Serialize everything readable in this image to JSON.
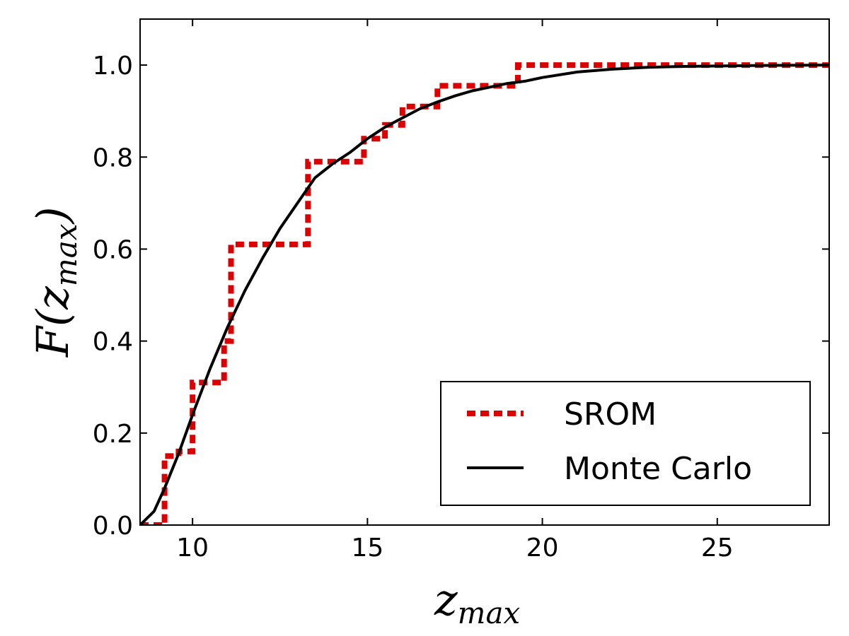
{
  "chart_data": {
    "type": "line",
    "xlabel": "z",
    "xlabel_sub": "max",
    "ylabel": "F(z",
    "ylabel_sub": "max",
    "ylabel_close": ")",
    "xlim": [
      8.5,
      28.2
    ],
    "ylim": [
      0.0,
      1.1
    ],
    "xticks": [
      10,
      15,
      20,
      25
    ],
    "xtick_labels": [
      "10",
      "15",
      "20",
      "25"
    ],
    "yticks": [
      0.0,
      0.2,
      0.4,
      0.6,
      0.8,
      1.0
    ],
    "ytick_labels": [
      "0.0",
      "0.2",
      "0.4",
      "0.6",
      "0.8",
      "1.0"
    ],
    "grid": false,
    "legend_position": "bottom-right",
    "series": [
      {
        "name": "SROM",
        "style": "dashed-step",
        "color": "#dd0000",
        "x": [
          8.5,
          9.2,
          9.2,
          9.6,
          9.6,
          10.0,
          10.0,
          10.9,
          10.9,
          11.1,
          11.1,
          13.3,
          13.3,
          14.9,
          14.9,
          15.5,
          15.5,
          16.0,
          16.0,
          17.0,
          17.0,
          19.3,
          19.3,
          28.2
        ],
        "y": [
          0.0,
          0.0,
          0.15,
          0.15,
          0.16,
          0.16,
          0.31,
          0.31,
          0.4,
          0.4,
          0.61,
          0.61,
          0.79,
          0.79,
          0.84,
          0.84,
          0.87,
          0.87,
          0.91,
          0.91,
          0.955,
          0.955,
          1.0,
          1.0
        ]
      },
      {
        "name": "Monte Carlo",
        "style": "solid",
        "color": "#000000",
        "x": [
          8.5,
          8.9,
          9.2,
          9.6,
          10.0,
          10.5,
          11.0,
          11.5,
          12.0,
          12.5,
          13.0,
          13.5,
          14.0,
          14.5,
          15.0,
          15.5,
          16.0,
          16.5,
          17.0,
          17.5,
          18.0,
          18.5,
          19.0,
          19.5,
          20.0,
          21.0,
          22.0,
          23.0,
          24.0,
          25.0,
          26.0,
          27.0,
          28.2
        ],
        "y": [
          0.0,
          0.03,
          0.08,
          0.155,
          0.24,
          0.34,
          0.43,
          0.51,
          0.58,
          0.645,
          0.7,
          0.755,
          0.785,
          0.81,
          0.84,
          0.865,
          0.885,
          0.905,
          0.92,
          0.933,
          0.944,
          0.952,
          0.96,
          0.965,
          0.973,
          0.985,
          0.991,
          0.995,
          0.997,
          0.998,
          0.999,
          0.9995,
          1.0
        ]
      }
    ]
  }
}
